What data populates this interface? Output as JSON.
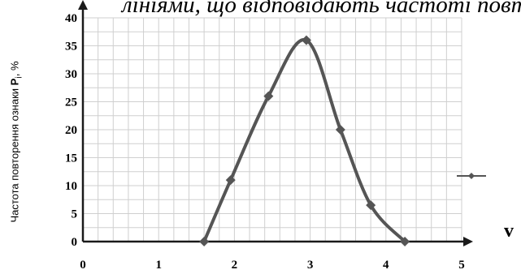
{
  "caption_fragment": "лініями, що відповідають частоті повт",
  "chart_data": {
    "type": "line",
    "title": "",
    "xlabel": "v",
    "ylabel": "Частота повторення ознаки",
    "ylabel_symbol": "P",
    "ylabel_subscript": "i",
    "ylabel_unit": ", %",
    "xlim": [
      0,
      5
    ],
    "ylim": [
      0,
      40
    ],
    "x_ticks": [
      "0",
      "1",
      "2",
      "3",
      "4",
      "5"
    ],
    "y_ticks": [
      "0",
      "5",
      "10",
      "15",
      "20",
      "25",
      "30",
      "35",
      "40"
    ],
    "grid": true,
    "legend": "right",
    "series": [
      {
        "x": [
          1.6,
          1.95,
          2.45,
          2.95,
          3.4,
          3.8,
          4.25
        ],
        "y": [
          0,
          11,
          26,
          36,
          20,
          6.5,
          0
        ]
      }
    ],
    "colors": {
      "line": "#555555",
      "axis": "#1a1a1a",
      "grid": "#cfcfcf"
    }
  }
}
